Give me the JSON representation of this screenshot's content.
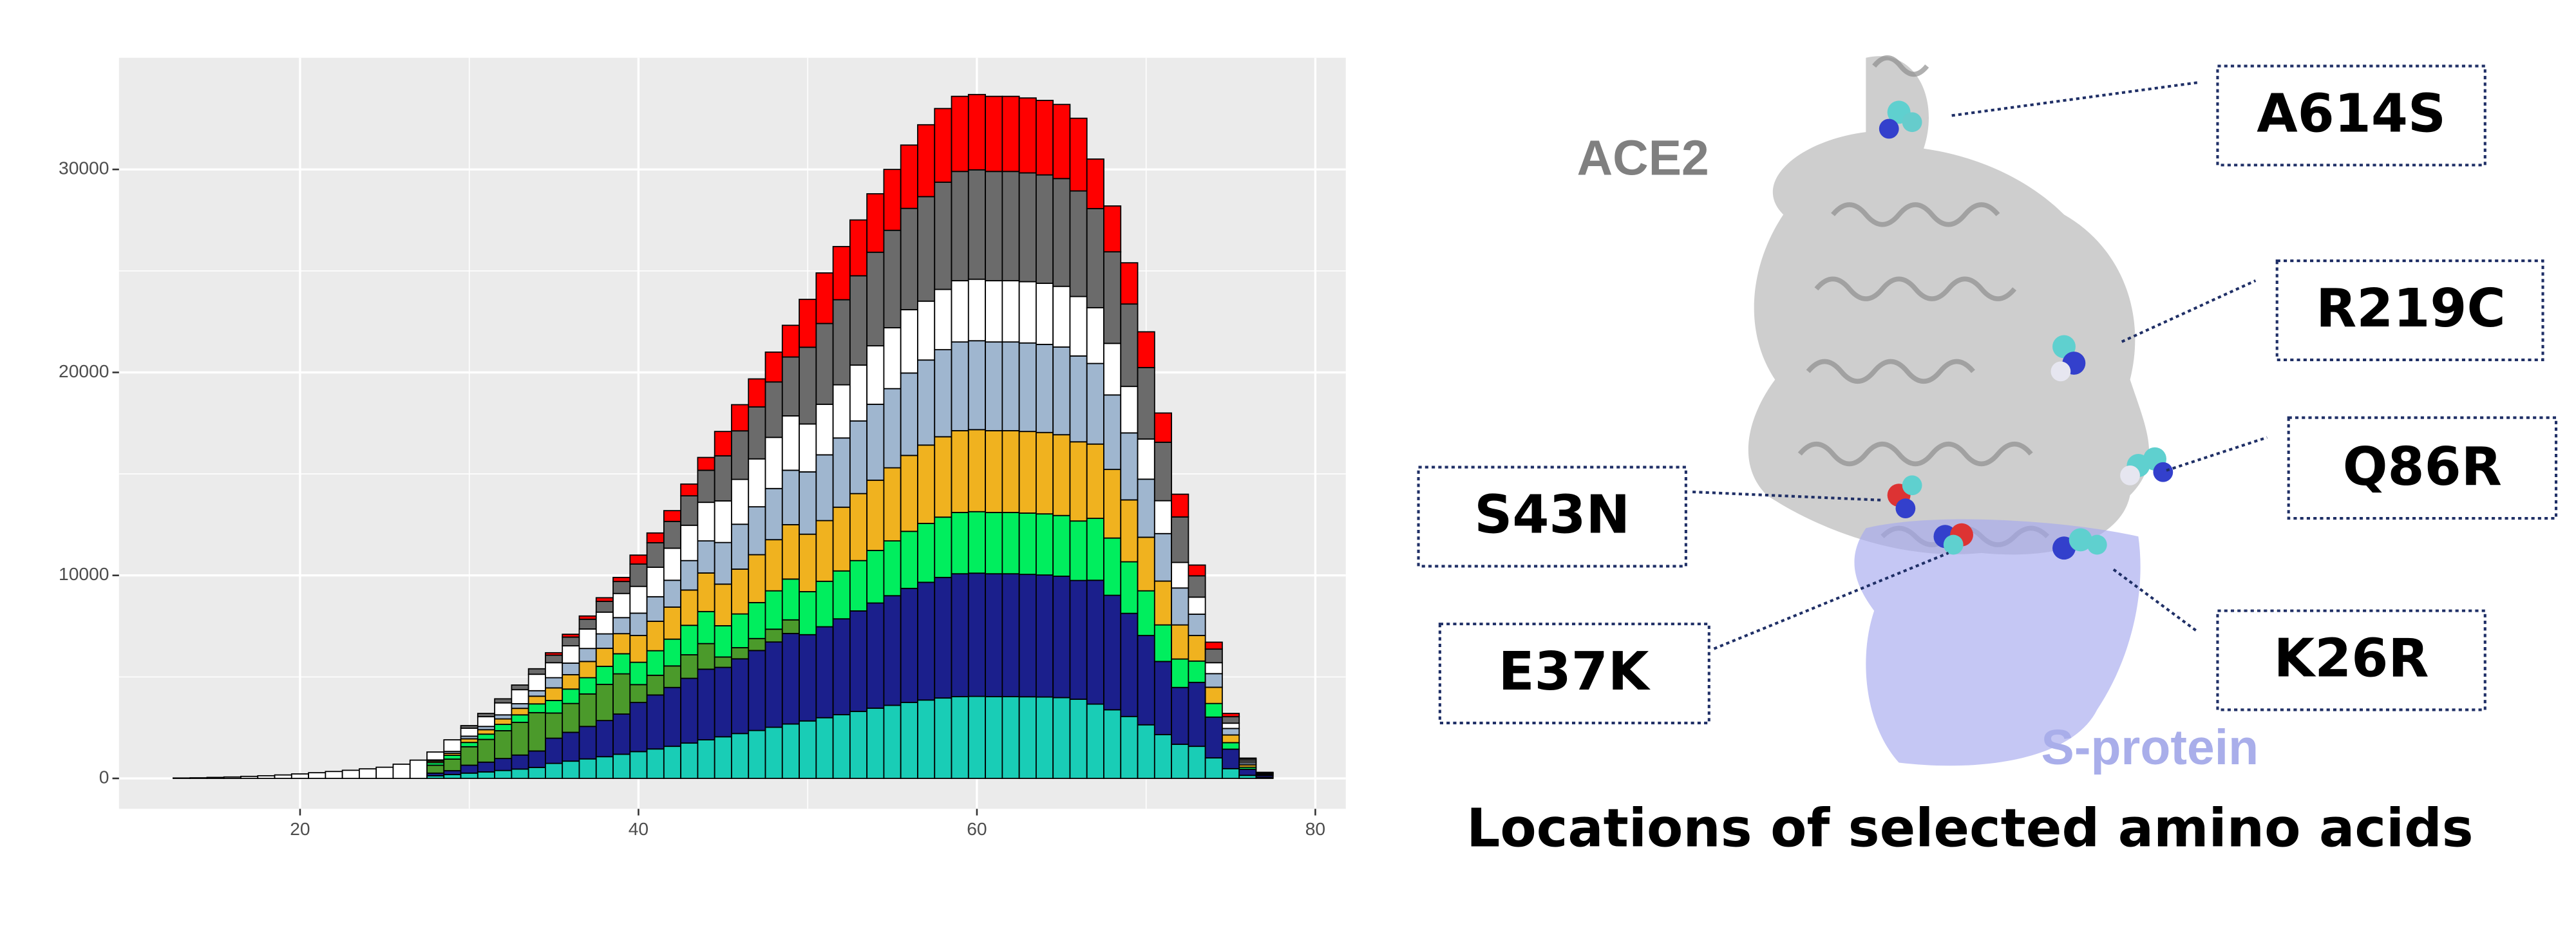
{
  "chart_data": {
    "type": "histogram",
    "bins": [
      12.5,
      13.5,
      14.5,
      15.5,
      16.5,
      17.5,
      18.5,
      19.5,
      20.5,
      21.5,
      22.5,
      23.5,
      24.5,
      25.5,
      26.5,
      27.5,
      28.5,
      29.5,
      30.5,
      31.5,
      32.5,
      33.5,
      34.5,
      35.5,
      36.5,
      37.5,
      38.5,
      39.5,
      40.5,
      41.5,
      42.5,
      43.5,
      44.5,
      45.5,
      46.5,
      47.5,
      48.5,
      49.5,
      50.5,
      51.5,
      52.5,
      53.5,
      54.5,
      55.5,
      56.5,
      57.5,
      58.5,
      59.5,
      60.5,
      61.5,
      62.5,
      63.5,
      64.5,
      65.5,
      66.5,
      67.5,
      68.5,
      69.5,
      70.5,
      71.5,
      72.5,
      73.5,
      74.5,
      75.5,
      76.5,
      77.5
    ],
    "stacked": true,
    "series": [
      {
        "color": "#19cdb6",
        "values": [
          0,
          0,
          0,
          0,
          0,
          0,
          0,
          0,
          0,
          0,
          0,
          0,
          0,
          0,
          0,
          130,
          190,
          260,
          320,
          390,
          460,
          540,
          740,
          850,
          960,
          1070,
          1190,
          1320,
          1450,
          1580,
          1740,
          1900,
          2050,
          2210,
          2360,
          2520,
          2680,
          2830,
          2990,
          3140,
          3300,
          3460,
          3600,
          3740,
          3860,
          3960,
          4030,
          4040,
          4030,
          4030,
          4020,
          4010,
          3980,
          3900,
          3660,
          3380,
          3050,
          2640,
          2160,
          1680,
          1580,
          1010,
          480,
          150,
          50
        ]
      },
      {
        "color": "#1b1f8c",
        "values": [
          0,
          0,
          0,
          0,
          0,
          0,
          0,
          0,
          0,
          0,
          0,
          0,
          0,
          0,
          0,
          130,
          190,
          390,
          480,
          590,
          690,
          810,
          1240,
          1420,
          1600,
          1780,
          1980,
          2420,
          2660,
          2900,
          3190,
          3480,
          3420,
          3680,
          3940,
          4200,
          4460,
          4250,
          4480,
          4720,
          4950,
          5180,
          5400,
          5620,
          5800,
          5940,
          6050,
          6070,
          6050,
          6050,
          6030,
          6010,
          5980,
          5850,
          6100,
          5640,
          5080,
          4400,
          3600,
          2800,
          3150,
          2010,
          960,
          300,
          90
        ]
      },
      {
        "color": "#4b9a2b",
        "values": [
          0,
          0,
          0,
          0,
          0,
          0,
          0,
          0,
          0,
          0,
          0,
          0,
          0,
          0,
          0,
          390,
          570,
          910,
          1120,
          1370,
          1610,
          1890,
          1240,
          1420,
          1600,
          1780,
          1980,
          880,
          970,
          1060,
          1160,
          1260,
          510,
          550,
          590,
          630,
          670,
          0,
          0,
          0,
          0,
          0,
          0,
          0,
          0,
          0,
          0,
          0,
          0,
          0,
          0,
          0,
          0,
          0,
          0,
          0,
          0,
          0,
          0,
          0,
          0,
          0,
          0,
          0,
          0
        ]
      },
      {
        "color": "#00ee5e",
        "values": [
          0,
          0,
          0,
          0,
          0,
          0,
          0,
          0,
          0,
          0,
          0,
          0,
          0,
          0,
          0,
          130,
          190,
          210,
          260,
          310,
          370,
          430,
          620,
          710,
          800,
          890,
          990,
          1100,
          1210,
          1320,
          1450,
          1580,
          1540,
          1660,
          1770,
          1890,
          2010,
          2120,
          2240,
          2360,
          2480,
          2590,
          2700,
          2810,
          2900,
          2970,
          3020,
          3030,
          3020,
          3020,
          3020,
          3010,
          2990,
          2930,
          3050,
          2820,
          2540,
          2200,
          1800,
          1400,
          1050,
          670,
          320,
          100,
          30
        ]
      },
      {
        "color": "#f0b21f",
        "values": [
          0,
          0,
          0,
          0,
          0,
          0,
          0,
          0,
          0,
          0,
          0,
          0,
          0,
          0,
          0,
          70,
          100,
          180,
          220,
          270,
          320,
          380,
          620,
          710,
          800,
          890,
          990,
          1320,
          1450,
          1580,
          1740,
          1900,
          2050,
          2210,
          2360,
          2520,
          2680,
          2830,
          2990,
          3140,
          3300,
          3460,
          3600,
          3740,
          3860,
          3960,
          4030,
          4040,
          4030,
          4030,
          4020,
          4010,
          3980,
          3900,
          3660,
          3380,
          3050,
          2640,
          2160,
          1680,
          1260,
          800,
          380,
          120,
          40
        ]
      },
      {
        "color": "#9fb6cf",
        "values": [
          0,
          0,
          0,
          0,
          0,
          0,
          0,
          0,
          0,
          0,
          0,
          0,
          0,
          0,
          0,
          60,
          90,
          130,
          160,
          200,
          230,
          270,
          500,
          570,
          640,
          710,
          790,
          1100,
          1210,
          1320,
          1450,
          1580,
          2050,
          2210,
          2360,
          2520,
          2680,
          3070,
          3240,
          3410,
          3580,
          3740,
          3900,
          4060,
          4190,
          4290,
          4370,
          4380,
          4370,
          4370,
          4360,
          4340,
          4320,
          4230,
          3970,
          3670,
          3300,
          2860,
          2340,
          1820,
          1050,
          670,
          320,
          100,
          30
        ]
      },
      {
        "color": "#ffffff",
        "values": [
          20,
          30,
          50,
          70,
          100,
          130,
          170,
          220,
          280,
          340,
          400,
          470,
          550,
          700,
          900,
          390,
          570,
          390,
          480,
          590,
          690,
          810,
          740,
          850,
          960,
          1070,
          1190,
          1320,
          1450,
          1580,
          1740,
          1900,
          2050,
          2210,
          2360,
          2520,
          2680,
          2360,
          2490,
          2620,
          2750,
          2880,
          3000,
          3120,
          2900,
          2970,
          3020,
          3030,
          3020,
          3020,
          3020,
          3010,
          2990,
          2930,
          2750,
          2540,
          2290,
          1980,
          1620,
          1260,
          840,
          540,
          260,
          80,
          20
        ]
      },
      {
        "color": "#6b6b6b",
        "values": [
          0,
          0,
          0,
          0,
          0,
          0,
          0,
          0,
          0,
          0,
          0,
          0,
          0,
          0,
          0,
          0,
          0,
          130,
          160,
          200,
          230,
          270,
          370,
          430,
          480,
          530,
          590,
          1100,
          1210,
          1320,
          1450,
          1580,
          2220,
          2390,
          2560,
          2730,
          2900,
          3780,
          3980,
          4190,
          4400,
          4610,
          4800,
          4990,
          5150,
          5280,
          5380,
          5390,
          5380,
          5380,
          5360,
          5340,
          5310,
          5200,
          4880,
          4510,
          4060,
          3520,
          2880,
          2240,
          1050,
          670,
          320,
          100,
          30
        ]
      },
      {
        "color": "#ff0000",
        "values": [
          0,
          0,
          0,
          0,
          0,
          0,
          0,
          0,
          0,
          0,
          0,
          0,
          0,
          0,
          0,
          0,
          0,
          0,
          0,
          0,
          0,
          0,
          120,
          140,
          160,
          180,
          200,
          440,
          480,
          530,
          580,
          630,
          1200,
          1290,
          1380,
          1470,
          1560,
          2360,
          2490,
          2620,
          2750,
          2880,
          3000,
          3120,
          3540,
          3630,
          3700,
          3710,
          3700,
          3700,
          3690,
          3670,
          3650,
          3580,
          2440,
          2260,
          2030,
          1760,
          1440,
          1120,
          530,
          340,
          160,
          50,
          10
        ]
      }
    ],
    "xlim": [
      9.3,
      81.8
    ],
    "xticks": [
      20,
      40,
      60,
      80
    ],
    "ylim": [
      -1500,
      35500
    ],
    "yticks": [
      0,
      10000,
      20000,
      30000
    ],
    "grid": true
  },
  "structure": {
    "title": "Locations of selected amino acids",
    "protein_labels": [
      "ACE2",
      "S-protein"
    ],
    "mutations": [
      "A614S",
      "R219C",
      "Q86R",
      "S43N",
      "E37K",
      "K26R"
    ]
  }
}
